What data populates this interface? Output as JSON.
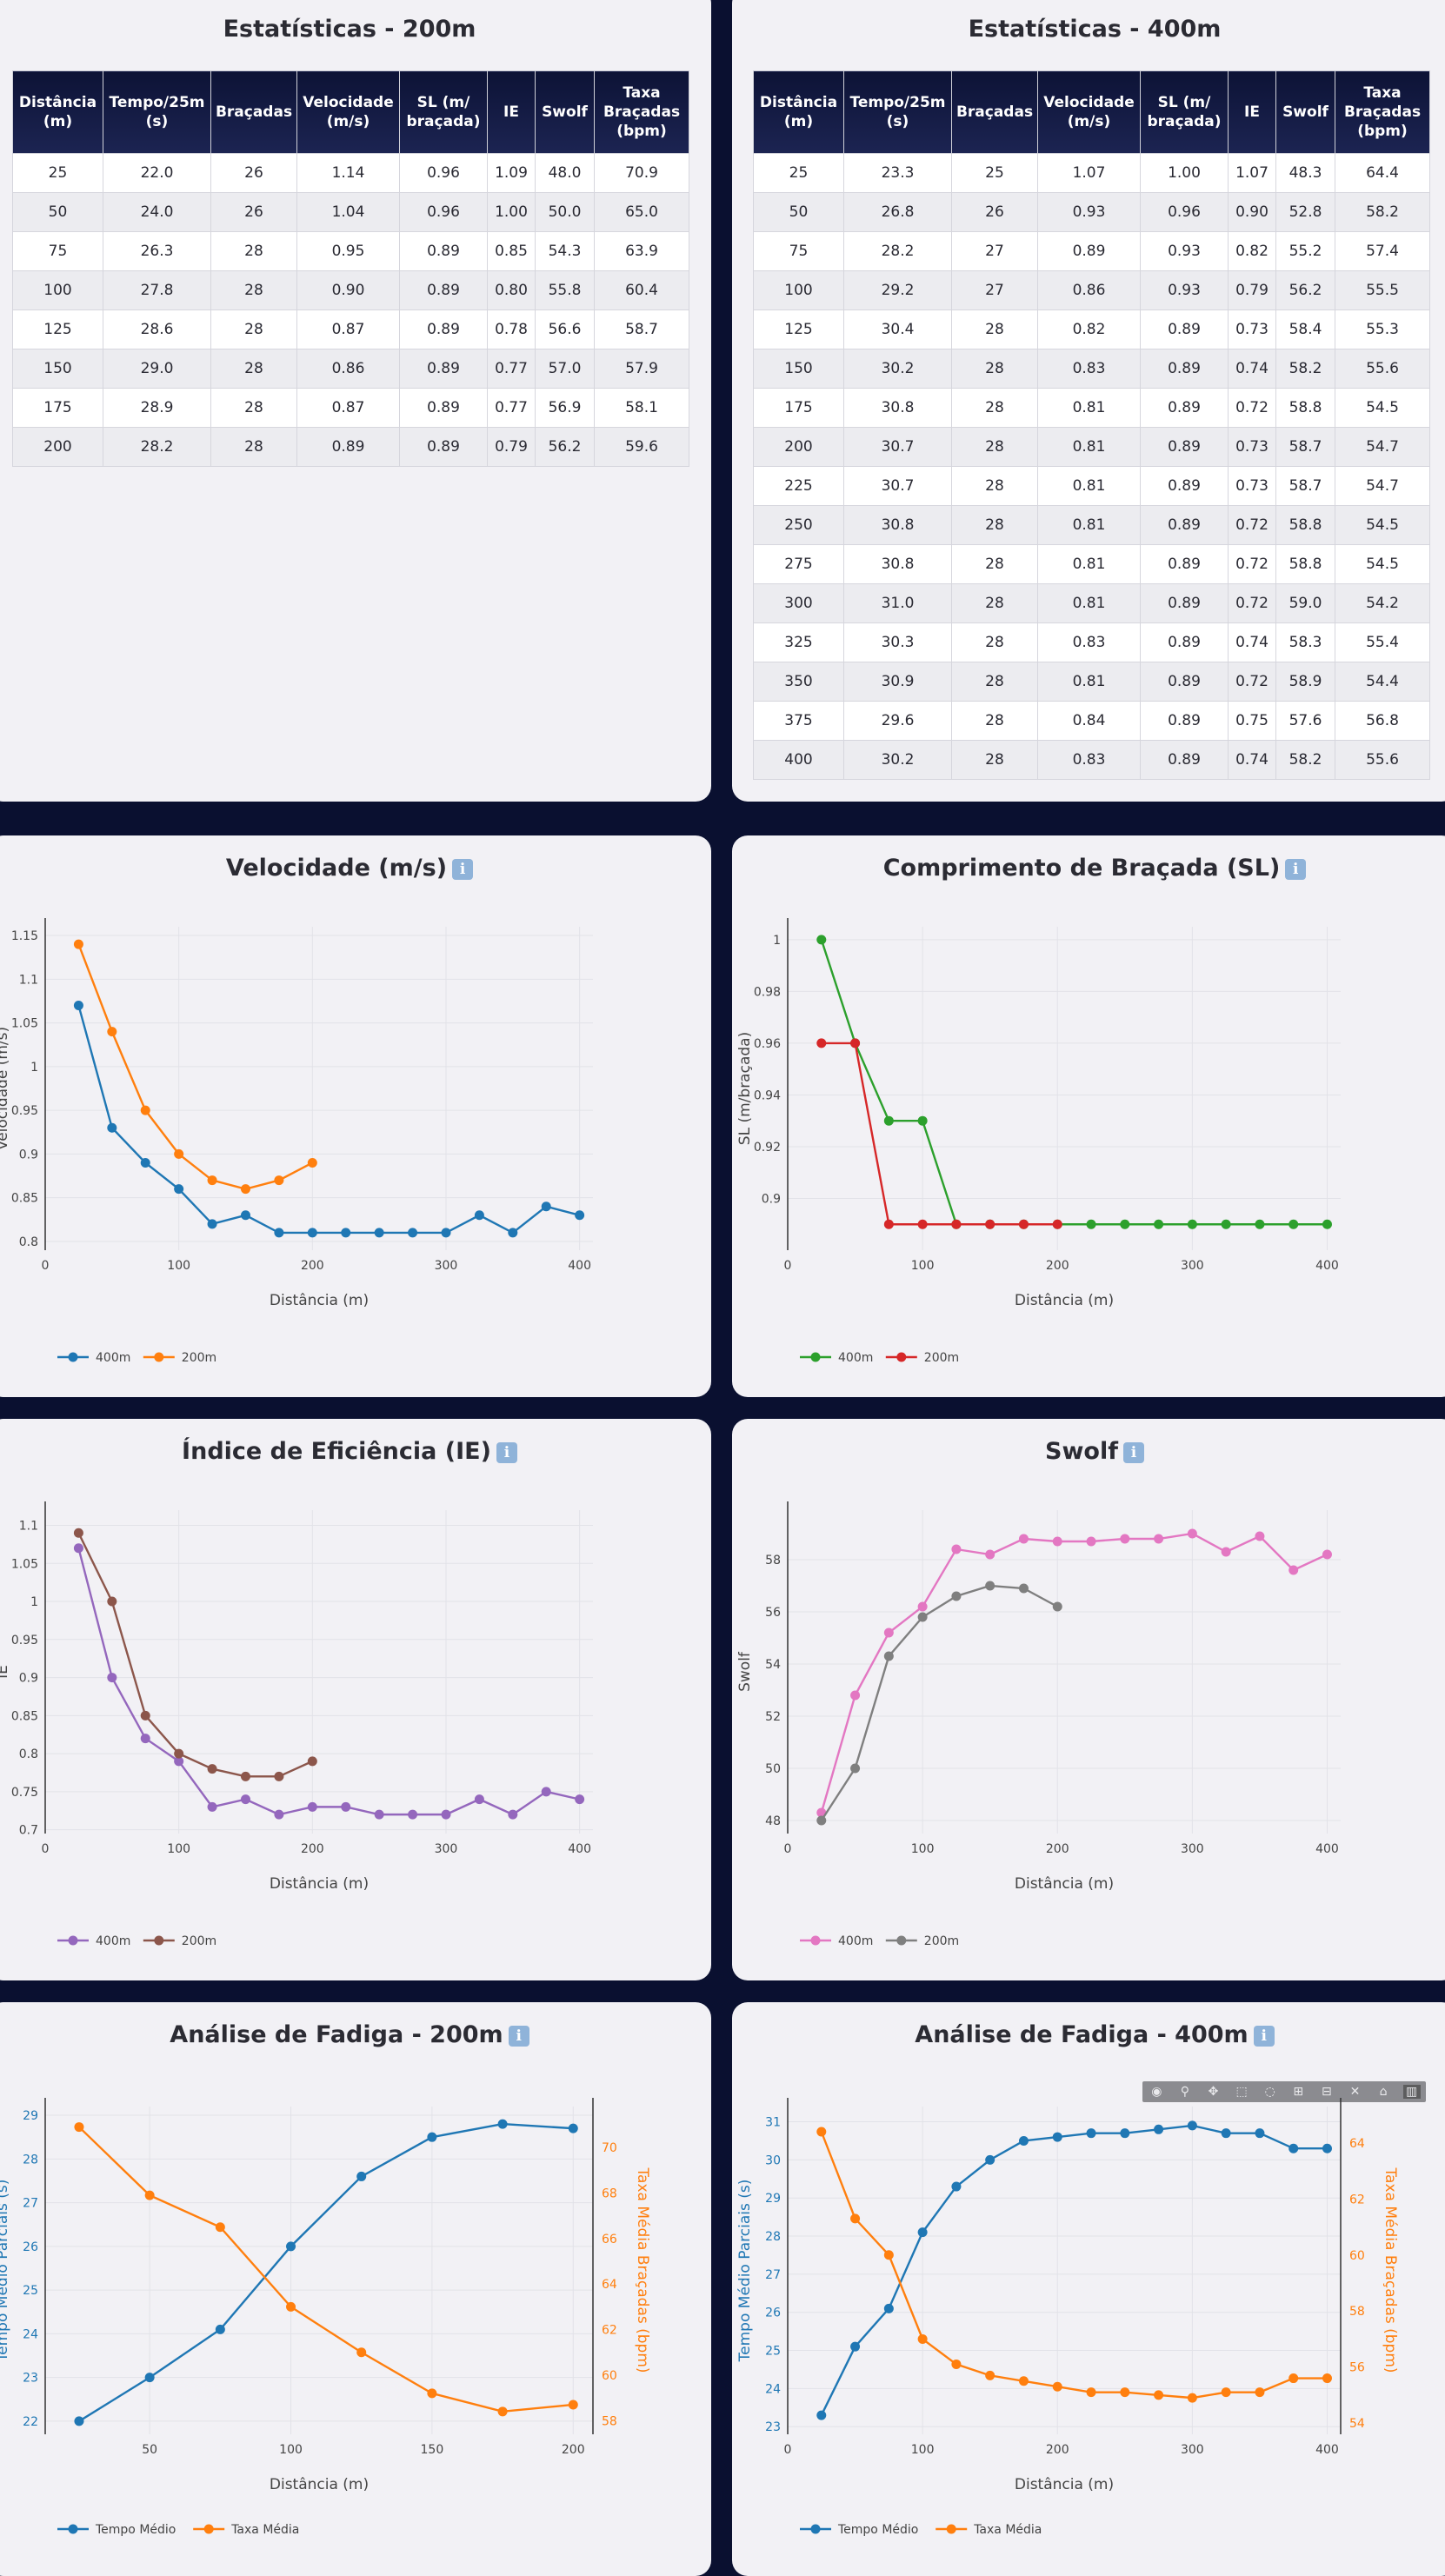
{
  "table200": {
    "title": "Estatísticas - 200m",
    "headers": [
      "Distância (m)",
      "Tempo/25m (s)",
      "Braçadas",
      "Velocidade (m/s)",
      "SL (m/ braçada)",
      "IE",
      "Swolf",
      "Taxa Braçadas (bpm)"
    ],
    "rows": [
      [
        "25",
        "22.0",
        "26",
        "1.14",
        "0.96",
        "1.09",
        "48.0",
        "70.9"
      ],
      [
        "50",
        "24.0",
        "26",
        "1.04",
        "0.96",
        "1.00",
        "50.0",
        "65.0"
      ],
      [
        "75",
        "26.3",
        "28",
        "0.95",
        "0.89",
        "0.85",
        "54.3",
        "63.9"
      ],
      [
        "100",
        "27.8",
        "28",
        "0.90",
        "0.89",
        "0.80",
        "55.8",
        "60.4"
      ],
      [
        "125",
        "28.6",
        "28",
        "0.87",
        "0.89",
        "0.78",
        "56.6",
        "58.7"
      ],
      [
        "150",
        "29.0",
        "28",
        "0.86",
        "0.89",
        "0.77",
        "57.0",
        "57.9"
      ],
      [
        "175",
        "28.9",
        "28",
        "0.87",
        "0.89",
        "0.77",
        "56.9",
        "58.1"
      ],
      [
        "200",
        "28.2",
        "28",
        "0.89",
        "0.89",
        "0.79",
        "56.2",
        "59.6"
      ]
    ]
  },
  "table400": {
    "title": "Estatísticas - 400m",
    "headers": [
      "Distância (m)",
      "Tempo/25m (s)",
      "Braçadas",
      "Velocidade (m/s)",
      "SL (m/ braçada)",
      "IE",
      "Swolf",
      "Taxa Braçadas (bpm)"
    ],
    "rows": [
      [
        "25",
        "23.3",
        "25",
        "1.07",
        "1.00",
        "1.07",
        "48.3",
        "64.4"
      ],
      [
        "50",
        "26.8",
        "26",
        "0.93",
        "0.96",
        "0.90",
        "52.8",
        "58.2"
      ],
      [
        "75",
        "28.2",
        "27",
        "0.89",
        "0.93",
        "0.82",
        "55.2",
        "57.4"
      ],
      [
        "100",
        "29.2",
        "27",
        "0.86",
        "0.93",
        "0.79",
        "56.2",
        "55.5"
      ],
      [
        "125",
        "30.4",
        "28",
        "0.82",
        "0.89",
        "0.73",
        "58.4",
        "55.3"
      ],
      [
        "150",
        "30.2",
        "28",
        "0.83",
        "0.89",
        "0.74",
        "58.2",
        "55.6"
      ],
      [
        "175",
        "30.8",
        "28",
        "0.81",
        "0.89",
        "0.72",
        "58.8",
        "54.5"
      ],
      [
        "200",
        "30.7",
        "28",
        "0.81",
        "0.89",
        "0.73",
        "58.7",
        "54.7"
      ],
      [
        "225",
        "30.7",
        "28",
        "0.81",
        "0.89",
        "0.73",
        "58.7",
        "54.7"
      ],
      [
        "250",
        "30.8",
        "28",
        "0.81",
        "0.89",
        "0.72",
        "58.8",
        "54.5"
      ],
      [
        "275",
        "30.8",
        "28",
        "0.81",
        "0.89",
        "0.72",
        "58.8",
        "54.5"
      ],
      [
        "300",
        "31.0",
        "28",
        "0.81",
        "0.89",
        "0.72",
        "59.0",
        "54.2"
      ],
      [
        "325",
        "30.3",
        "28",
        "0.83",
        "0.89",
        "0.74",
        "58.3",
        "55.4"
      ],
      [
        "350",
        "30.9",
        "28",
        "0.81",
        "0.89",
        "0.72",
        "58.9",
        "54.4"
      ],
      [
        "375",
        "29.6",
        "28",
        "0.84",
        "0.89",
        "0.75",
        "57.6",
        "56.8"
      ],
      [
        "400",
        "30.2",
        "28",
        "0.83",
        "0.89",
        "0.74",
        "58.2",
        "55.6"
      ]
    ]
  },
  "info_icon": "ℹ",
  "chart_data": [
    {
      "id": "velocidade",
      "type": "line",
      "title": "Velocidade (m/s)",
      "xlabel": "Distância (m)",
      "ylabel": "Velocidade (m/s)",
      "xlim": [
        0,
        410
      ],
      "ylim": [
        0.79,
        1.16
      ],
      "xticks": [
        0,
        100,
        200,
        300,
        400
      ],
      "yticks": [
        0.8,
        0.85,
        0.9,
        0.95,
        1,
        1.05,
        1.1,
        1.15
      ],
      "ytick_labels": [
        "0.8",
        "0.85",
        "0.9",
        "0.95",
        "1",
        "1.05",
        "1.1",
        "1.15"
      ],
      "grid": true,
      "legend": "bottom-left",
      "series": [
        {
          "name": "400m",
          "color": "#1f77b4",
          "x": [
            25,
            50,
            75,
            100,
            125,
            150,
            175,
            200,
            225,
            250,
            275,
            300,
            325,
            350,
            375,
            400
          ],
          "y": [
            1.07,
            0.93,
            0.89,
            0.86,
            0.82,
            0.83,
            0.81,
            0.81,
            0.81,
            0.81,
            0.81,
            0.81,
            0.83,
            0.81,
            0.84,
            0.83
          ]
        },
        {
          "name": "200m",
          "color": "#ff7f0e",
          "x": [
            25,
            50,
            75,
            100,
            125,
            150,
            175,
            200
          ],
          "y": [
            1.14,
            1.04,
            0.95,
            0.9,
            0.87,
            0.86,
            0.87,
            0.89
          ]
        }
      ]
    },
    {
      "id": "sl",
      "type": "line",
      "title": "Comprimento de Braçada (SL)",
      "xlabel": "Distância (m)",
      "ylabel": "SL (m/braçada)",
      "xlim": [
        0,
        410
      ],
      "ylim": [
        0.88,
        1.005
      ],
      "xticks": [
        0,
        100,
        200,
        300,
        400
      ],
      "yticks": [
        0.9,
        0.92,
        0.94,
        0.96,
        0.98,
        1
      ],
      "ytick_labels": [
        "0.9",
        "0.92",
        "0.94",
        "0.96",
        "0.98",
        "1"
      ],
      "grid": true,
      "legend": "bottom-left",
      "series": [
        {
          "name": "400m",
          "color": "#2ca02c",
          "x": [
            25,
            50,
            75,
            100,
            125,
            150,
            175,
            200,
            225,
            250,
            275,
            300,
            325,
            350,
            375,
            400
          ],
          "y": [
            1.0,
            0.96,
            0.93,
            0.93,
            0.89,
            0.89,
            0.89,
            0.89,
            0.89,
            0.89,
            0.89,
            0.89,
            0.89,
            0.89,
            0.89,
            0.89
          ]
        },
        {
          "name": "200m",
          "color": "#d62728",
          "x": [
            25,
            50,
            75,
            100,
            125,
            150,
            175,
            200
          ],
          "y": [
            0.96,
            0.96,
            0.89,
            0.89,
            0.89,
            0.89,
            0.89,
            0.89
          ]
        }
      ]
    },
    {
      "id": "ie",
      "type": "line",
      "title": "Índice de Eficiência (IE)",
      "xlabel": "Distância (m)",
      "ylabel": "IE",
      "xlim": [
        0,
        410
      ],
      "ylim": [
        0.695,
        1.12
      ],
      "xticks": [
        0,
        100,
        200,
        300,
        400
      ],
      "yticks": [
        0.7,
        0.75,
        0.8,
        0.85,
        0.9,
        0.95,
        1,
        1.05,
        1.1
      ],
      "ytick_labels": [
        "0.7",
        "0.75",
        "0.8",
        "0.85",
        "0.9",
        "0.95",
        "1",
        "1.05",
        "1.1"
      ],
      "grid": true,
      "legend": "bottom-left",
      "series": [
        {
          "name": "400m",
          "color": "#9467bd",
          "x": [
            25,
            50,
            75,
            100,
            125,
            150,
            175,
            200,
            225,
            250,
            275,
            300,
            325,
            350,
            375,
            400
          ],
          "y": [
            1.07,
            0.9,
            0.82,
            0.79,
            0.73,
            0.74,
            0.72,
            0.73,
            0.73,
            0.72,
            0.72,
            0.72,
            0.74,
            0.72,
            0.75,
            0.74
          ]
        },
        {
          "name": "200m",
          "color": "#8c564b",
          "x": [
            25,
            50,
            75,
            100,
            125,
            150,
            175,
            200
          ],
          "y": [
            1.09,
            1.0,
            0.85,
            0.8,
            0.78,
            0.77,
            0.77,
            0.79
          ]
        }
      ]
    },
    {
      "id": "swolf",
      "type": "line",
      "title": "Swolf",
      "xlabel": "Distância (m)",
      "ylabel": "Swolf",
      "xlim": [
        0,
        410
      ],
      "ylim": [
        47.5,
        59.9
      ],
      "xticks": [
        0,
        100,
        200,
        300,
        400
      ],
      "yticks": [
        48,
        50,
        52,
        54,
        56,
        58
      ],
      "ytick_labels": [
        "48",
        "50",
        "52",
        "54",
        "56",
        "58"
      ],
      "grid": true,
      "legend": "bottom-left",
      "series": [
        {
          "name": "400m",
          "color": "#e377c2",
          "x": [
            25,
            50,
            75,
            100,
            125,
            150,
            175,
            200,
            225,
            250,
            275,
            300,
            325,
            350,
            375,
            400
          ],
          "y": [
            48.3,
            52.8,
            55.2,
            56.2,
            58.4,
            58.2,
            58.8,
            58.7,
            58.7,
            58.8,
            58.8,
            59.0,
            58.3,
            58.9,
            57.6,
            58.2
          ]
        },
        {
          "name": "200m",
          "color": "#7f7f7f",
          "x": [
            25,
            50,
            75,
            100,
            125,
            150,
            175,
            200
          ],
          "y": [
            48.0,
            50.0,
            54.3,
            55.8,
            56.6,
            57.0,
            56.9,
            56.2
          ]
        }
      ]
    },
    {
      "id": "fadiga200",
      "type": "line",
      "title": "Análise de Fadiga - 200m",
      "xlabel": "Distância (m)",
      "ylabel": "Tempo Médio Parciais (s)",
      "ylabel_right": "Taxa Média Braçadas (bpm)",
      "xlim": [
        13,
        207
      ],
      "ylim": [
        21.7,
        29.2
      ],
      "ylim_right": [
        57.4,
        71.8
      ],
      "xticks": [
        50,
        100,
        150,
        200
      ],
      "yticks": [
        22,
        23,
        24,
        25,
        26,
        27,
        28,
        29
      ],
      "ytick_labels": [
        "22",
        "23",
        "24",
        "25",
        "26",
        "27",
        "28",
        "29"
      ],
      "yticks_right": [
        58,
        60,
        62,
        64,
        66,
        68,
        70
      ],
      "ytick_labels_right": [
        "58",
        "60",
        "62",
        "64",
        "66",
        "68",
        "70"
      ],
      "grid": true,
      "legend": "bottom-left",
      "series": [
        {
          "name": "Tempo Médio",
          "color": "#1f77b4",
          "axis": "left",
          "x": [
            25,
            50,
            75,
            100,
            125,
            150,
            175,
            200
          ],
          "y": [
            22.0,
            23.0,
            24.1,
            26.0,
            27.6,
            28.5,
            28.8,
            28.7
          ]
        },
        {
          "name": "Taxa Média",
          "color": "#ff7f0e",
          "axis": "right",
          "x": [
            25,
            50,
            75,
            100,
            125,
            150,
            175,
            200
          ],
          "y": [
            70.9,
            67.9,
            66.5,
            63.0,
            61.0,
            59.2,
            58.4,
            58.7
          ]
        }
      ]
    },
    {
      "id": "fadiga400",
      "type": "line",
      "title": "Análise de Fadiga - 400m",
      "xlabel": "Distância (m)",
      "ylabel": "Tempo Médio Parciais (s)",
      "ylabel_right": "Taxa Média Braçadas (bpm)",
      "xlim": [
        0,
        410
      ],
      "ylim": [
        22.8,
        31.4
      ],
      "ylim_right": [
        53.6,
        65.3
      ],
      "xticks": [
        0,
        100,
        200,
        300,
        400
      ],
      "yticks": [
        23,
        24,
        25,
        26,
        27,
        28,
        29,
        30,
        31
      ],
      "ytick_labels": [
        "23",
        "24",
        "25",
        "26",
        "27",
        "28",
        "29",
        "30",
        "31"
      ],
      "yticks_right": [
        54,
        56,
        58,
        60,
        62,
        64
      ],
      "ytick_labels_right": [
        "54",
        "56",
        "58",
        "60",
        "62",
        "64"
      ],
      "grid": true,
      "legend": "bottom-left",
      "modebar": true,
      "series": [
        {
          "name": "Tempo Médio",
          "color": "#1f77b4",
          "axis": "left",
          "x": [
            25,
            50,
            75,
            100,
            125,
            150,
            175,
            200,
            225,
            250,
            275,
            300,
            325,
            350,
            375,
            400
          ],
          "y": [
            23.3,
            25.1,
            26.1,
            28.1,
            29.3,
            30.0,
            30.5,
            30.6,
            30.7,
            30.7,
            30.8,
            30.9,
            30.7,
            30.7,
            30.3,
            30.3
          ]
        },
        {
          "name": "Taxa Média",
          "color": "#ff7f0e",
          "axis": "right",
          "x": [
            25,
            50,
            75,
            100,
            125,
            150,
            175,
            200,
            225,
            250,
            275,
            300,
            325,
            350,
            375,
            400
          ],
          "y": [
            64.4,
            61.3,
            60.0,
            57.0,
            56.1,
            55.7,
            55.5,
            55.3,
            55.1,
            55.1,
            55.0,
            54.9,
            55.1,
            55.1,
            55.6,
            55.6
          ]
        }
      ]
    }
  ]
}
